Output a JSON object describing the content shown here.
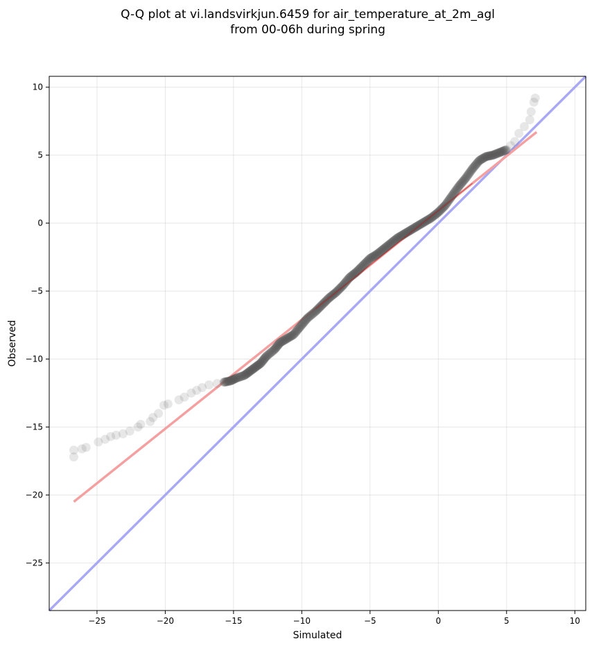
{
  "chart_data": {
    "type": "scatter",
    "title_line1": "Q-Q plot at vi.landsvirkjun.6459 for air_temperature_at_2m_agl",
    "title_line2": "from 00-06h during spring",
    "xlabel": "Simulated",
    "ylabel": "Observed",
    "xlim": [
      -28.5,
      10.8
    ],
    "ylim": [
      -28.5,
      10.8
    ],
    "xticks": [
      -25,
      -20,
      -15,
      -10,
      -5,
      0,
      5,
      10
    ],
    "yticks": [
      -25,
      -20,
      -15,
      -10,
      -5,
      0,
      5,
      10
    ],
    "grid": true,
    "colors": {
      "points": "#555555",
      "fit_line": "#f4a0a0",
      "fit_core": "#b22222",
      "identity_line": "#a8a8f4"
    },
    "qq_points": {
      "x": [
        -26.7,
        -26.7,
        -26.1,
        -25.8,
        -24.9,
        -24.4,
        -24.0,
        -23.6,
        -23.1,
        -22.6,
        -22.0,
        -21.8,
        -21.1,
        -20.9,
        -20.5,
        -20.1,
        -19.8,
        -19.0,
        -18.6,
        -18.1,
        -17.7,
        -17.3,
        -16.8,
        -16.2,
        -15.7,
        -15.2,
        -14.8,
        -14.2,
        -13.8,
        -13.4,
        -13.0,
        -12.6,
        -12.0,
        -11.6,
        -11.1,
        -10.6,
        -10.1,
        -9.6,
        -9.0,
        -8.5,
        -8.0,
        -7.5,
        -7.0,
        -6.5,
        -6.0,
        -5.5,
        -5.0,
        -4.5,
        -4.0,
        -3.5,
        -3.0,
        -2.5,
        -2.0,
        -1.5,
        -1.0,
        -0.5,
        0.0,
        0.5,
        1.0,
        1.5,
        2.0,
        2.5,
        3.0,
        3.5,
        4.0,
        4.5,
        5.0,
        5.3,
        5.6,
        5.9,
        6.3,
        6.7,
        6.8,
        7.0,
        7.1
      ],
      "y": [
        -17.2,
        -16.7,
        -16.6,
        -16.5,
        -16.1,
        -15.9,
        -15.7,
        -15.6,
        -15.5,
        -15.3,
        -15.0,
        -14.8,
        -14.6,
        -14.3,
        -14.0,
        -13.4,
        -13.3,
        -13.0,
        -12.8,
        -12.5,
        -12.3,
        -12.1,
        -11.9,
        -11.8,
        -11.7,
        -11.6,
        -11.4,
        -11.2,
        -10.9,
        -10.6,
        -10.3,
        -9.8,
        -9.3,
        -8.8,
        -8.5,
        -8.2,
        -7.6,
        -7.0,
        -6.5,
        -6.0,
        -5.5,
        -5.1,
        -4.6,
        -4.0,
        -3.6,
        -3.1,
        -2.6,
        -2.3,
        -1.9,
        -1.5,
        -1.1,
        -0.8,
        -0.5,
        -0.2,
        0.1,
        0.4,
        0.8,
        1.3,
        2.0,
        2.7,
        3.3,
        4.0,
        4.6,
        4.9,
        5.0,
        5.2,
        5.4,
        5.7,
        6.0,
        6.6,
        7.1,
        7.6,
        8.2,
        8.9,
        9.2
      ]
    },
    "fit_line": {
      "x": [
        -26.7,
        7.2
      ],
      "y": [
        -20.5,
        6.7
      ]
    },
    "identity_line": {
      "x": [
        -28.5,
        10.8
      ],
      "y": [
        -28.5,
        10.8
      ]
    }
  }
}
